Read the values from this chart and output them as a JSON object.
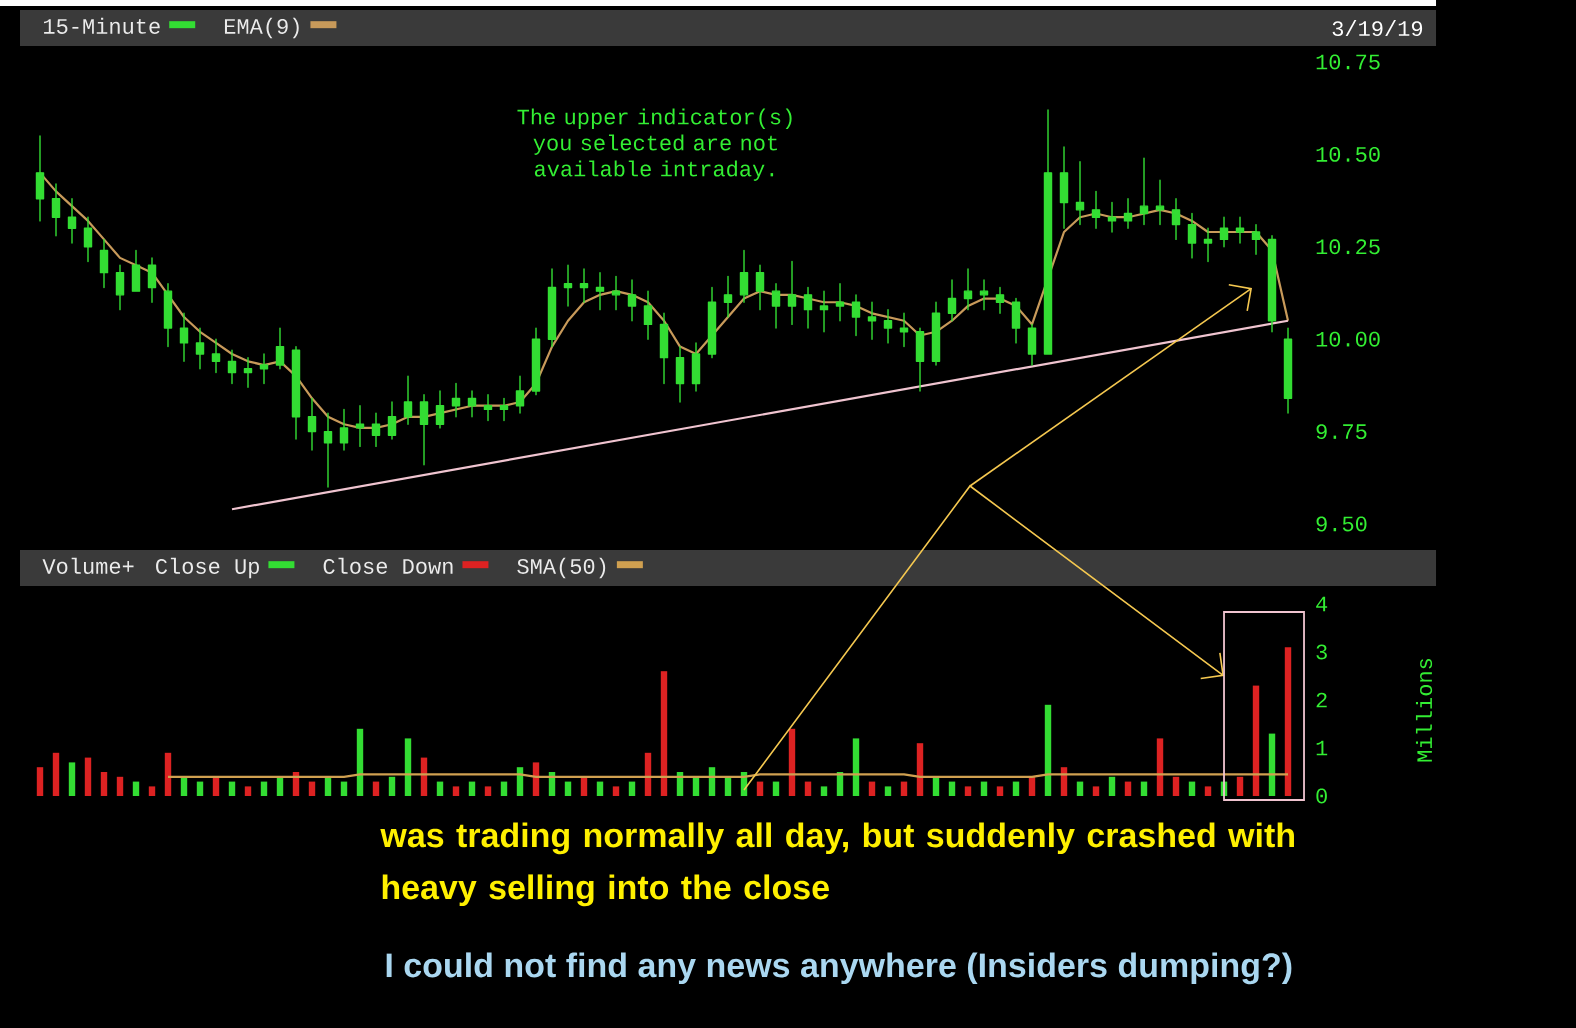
{
  "chart_data": [
    {
      "type": "candlestick",
      "categories": [
        null,
        null,
        null,
        null,
        null,
        null,
        null,
        null,
        null,
        null,
        null,
        null,
        null,
        null,
        null,
        null,
        null,
        null,
        null,
        null,
        null,
        null,
        null,
        null,
        null,
        null,
        null,
        null,
        null,
        null,
        null,
        null,
        null,
        null,
        null,
        null,
        null,
        null,
        null,
        null,
        null,
        null,
        null,
        null,
        null,
        null,
        null,
        null,
        null,
        null,
        null,
        null,
        null,
        null,
        null,
        null,
        null,
        null,
        null,
        null,
        null,
        null,
        null,
        null,
        null,
        null,
        null,
        null,
        null,
        null,
        null,
        null,
        null,
        null,
        null,
        null,
        null,
        null,
        null
      ],
      "series": [
        {
          "name": "15-Minute",
          "type": "candlestick",
          "color": "#33dd33",
          "ohlc": [
            [
              10.45,
              10.55,
              10.32,
              10.38
            ],
            [
              10.38,
              10.42,
              10.28,
              10.33
            ],
            [
              10.33,
              10.38,
              10.26,
              10.3
            ],
            [
              10.3,
              10.33,
              10.21,
              10.25
            ],
            [
              10.24,
              10.27,
              10.14,
              10.18
            ],
            [
              10.18,
              10.2,
              10.08,
              10.12
            ],
            [
              10.13,
              10.24,
              10.13,
              10.2
            ],
            [
              10.2,
              10.22,
              10.1,
              10.14
            ],
            [
              10.13,
              10.15,
              9.98,
              10.03
            ],
            [
              10.03,
              10.07,
              9.94,
              9.99
            ],
            [
              9.99,
              10.03,
              9.92,
              9.96
            ],
            [
              9.96,
              10.0,
              9.91,
              9.94
            ],
            [
              9.94,
              9.97,
              9.88,
              9.91
            ],
            [
              9.91,
              9.95,
              9.87,
              9.92
            ],
            [
              9.92,
              9.96,
              9.88,
              9.93
            ],
            [
              9.93,
              10.03,
              9.92,
              9.98
            ],
            [
              9.97,
              9.98,
              9.73,
              9.79
            ],
            [
              9.79,
              9.84,
              9.7,
              9.75
            ],
            [
              9.75,
              9.8,
              9.6,
              9.72
            ],
            [
              9.72,
              9.81,
              9.7,
              9.76
            ],
            [
              9.76,
              9.82,
              9.71,
              9.77
            ],
            [
              9.77,
              9.8,
              9.71,
              9.74
            ],
            [
              9.74,
              9.83,
              9.73,
              9.79
            ],
            [
              9.79,
              9.9,
              9.77,
              9.83
            ],
            [
              9.83,
              9.85,
              9.66,
              9.77
            ],
            [
              9.77,
              9.86,
              9.76,
              9.82
            ],
            [
              9.82,
              9.88,
              9.79,
              9.84
            ],
            [
              9.84,
              9.86,
              9.79,
              9.82
            ],
            [
              9.82,
              9.85,
              9.78,
              9.81
            ],
            [
              9.81,
              9.84,
              9.78,
              9.82
            ],
            [
              9.82,
              9.9,
              9.8,
              9.86
            ],
            [
              9.86,
              10.03,
              9.85,
              10.0
            ],
            [
              10.0,
              10.19,
              9.98,
              10.14
            ],
            [
              10.14,
              10.2,
              10.09,
              10.15
            ],
            [
              10.15,
              10.19,
              10.1,
              10.14
            ],
            [
              10.14,
              10.18,
              10.08,
              10.13
            ],
            [
              10.13,
              10.17,
              10.08,
              10.12
            ],
            [
              10.12,
              10.16,
              10.05,
              10.09
            ],
            [
              10.09,
              10.13,
              10.0,
              10.04
            ],
            [
              10.04,
              10.07,
              9.88,
              9.95
            ],
            [
              9.95,
              9.98,
              9.83,
              9.88
            ],
            [
              9.88,
              9.99,
              9.86,
              9.96
            ],
            [
              9.96,
              10.14,
              9.95,
              10.1
            ],
            [
              10.1,
              10.17,
              10.06,
              10.12
            ],
            [
              10.12,
              10.24,
              10.1,
              10.18
            ],
            [
              10.18,
              10.2,
              10.08,
              10.13
            ],
            [
              10.13,
              10.15,
              10.03,
              10.09
            ],
            [
              10.09,
              10.21,
              10.04,
              10.12
            ],
            [
              10.12,
              10.14,
              10.03,
              10.08
            ],
            [
              10.08,
              10.13,
              10.02,
              10.09
            ],
            [
              10.09,
              10.15,
              10.05,
              10.1
            ],
            [
              10.1,
              10.12,
              10.01,
              10.06
            ],
            [
              10.06,
              10.1,
              10.0,
              10.05
            ],
            [
              10.05,
              10.08,
              9.99,
              10.03
            ],
            [
              10.03,
              10.07,
              9.98,
              10.02
            ],
            [
              10.02,
              10.03,
              9.86,
              9.94
            ],
            [
              9.94,
              10.1,
              9.93,
              10.07
            ],
            [
              10.07,
              10.16,
              10.05,
              10.11
            ],
            [
              10.11,
              10.19,
              10.08,
              10.13
            ],
            [
              10.13,
              10.16,
              10.08,
              10.12
            ],
            [
              10.12,
              10.14,
              10.07,
              10.1
            ],
            [
              10.1,
              10.11,
              9.99,
              10.03
            ],
            [
              10.03,
              10.04,
              9.93,
              9.96
            ],
            [
              9.96,
              10.62,
              9.96,
              10.45
            ],
            [
              10.45,
              10.52,
              10.3,
              10.37
            ],
            [
              10.37,
              10.48,
              10.31,
              10.35
            ],
            [
              10.35,
              10.4,
              10.3,
              10.33
            ],
            [
              10.33,
              10.37,
              10.29,
              10.32
            ],
            [
              10.32,
              10.38,
              10.3,
              10.34
            ],
            [
              10.34,
              10.49,
              10.31,
              10.36
            ],
            [
              10.36,
              10.43,
              10.31,
              10.35
            ],
            [
              10.35,
              10.38,
              10.27,
              10.31
            ],
            [
              10.31,
              10.34,
              10.22,
              10.26
            ],
            [
              10.26,
              10.3,
              10.21,
              10.27
            ],
            [
              10.27,
              10.33,
              10.25,
              10.3
            ],
            [
              10.3,
              10.33,
              10.26,
              10.29
            ],
            [
              10.29,
              10.31,
              10.23,
              10.27
            ],
            [
              10.27,
              10.28,
              10.02,
              10.05
            ],
            [
              10.0,
              10.03,
              9.8,
              9.84
            ]
          ]
        },
        {
          "name": "EMA(9)",
          "type": "line",
          "color": "#c89a5a",
          "values": [
            10.45,
            10.4,
            10.36,
            10.32,
            10.27,
            10.22,
            10.2,
            10.18,
            10.12,
            10.06,
            10.02,
            9.99,
            9.96,
            9.94,
            9.93,
            9.94,
            9.9,
            9.84,
            9.79,
            9.77,
            9.76,
            9.76,
            9.77,
            9.79,
            9.79,
            9.8,
            9.81,
            9.82,
            9.82,
            9.82,
            9.83,
            9.88,
            9.98,
            10.05,
            10.1,
            10.12,
            10.13,
            10.12,
            10.1,
            10.05,
            9.98,
            9.96,
            10.01,
            10.06,
            10.11,
            10.13,
            10.12,
            10.12,
            10.11,
            10.1,
            10.1,
            10.09,
            10.07,
            10.06,
            10.05,
            10.01,
            10.02,
            10.05,
            10.09,
            10.11,
            10.11,
            10.09,
            10.04,
            null,
            10.29,
            10.33,
            10.34,
            10.33,
            10.33,
            10.34,
            10.35,
            10.34,
            10.32,
            10.29,
            10.29,
            10.29,
            10.29,
            10.24,
            10.05
          ]
        },
        {
          "type": "line",
          "color": "#f0c4d0",
          "values": [
            null,
            null,
            null,
            null,
            null,
            null,
            null,
            null,
            null,
            null,
            null,
            null,
            9.54,
            null,
            null,
            null,
            null,
            null,
            null,
            null,
            null,
            null,
            null,
            null,
            null,
            null,
            null,
            null,
            null,
            null,
            null,
            null,
            null,
            null,
            null,
            null,
            null,
            null,
            null,
            null,
            null,
            null,
            null,
            null,
            null,
            null,
            null,
            null,
            null,
            null,
            null,
            null,
            null,
            null,
            null,
            null,
            null,
            null,
            null,
            null,
            null,
            null,
            null,
            null,
            null,
            null,
            null,
            null,
            null,
            null,
            null,
            null,
            null,
            null,
            null,
            null,
            null,
            null,
            10.05
          ]
        }
      ],
      "ylim": [
        9.5,
        10.75
      ],
      "yticks": [
        {
          "value": 9.5,
          "label": "9.50"
        },
        9.75,
        {
          "value": 10,
          "label": "10.00"
        },
        10.25,
        {
          "value": 10.5,
          "label": "10.50"
        },
        10.75
      ],
      "tick_labels": "y",
      "legend": "top left",
      "annotations": [
        "3/19/19",
        "The upper indicator(s) you selected are not available intraday."
      ]
    },
    {
      "type": "bar",
      "title": "Volume+",
      "ylabel": "Millions",
      "stacked": true,
      "categories": [
        null,
        null,
        null,
        null,
        null,
        null,
        null,
        null,
        null,
        null,
        null,
        null,
        null,
        null,
        null,
        null,
        null,
        null,
        null,
        null,
        null,
        null,
        null,
        null,
        null,
        null,
        null,
        null,
        null,
        null,
        null,
        null,
        null,
        null,
        null,
        null,
        null,
        null,
        null,
        null,
        null,
        null,
        null,
        null,
        null,
        null,
        null,
        null,
        null,
        null,
        null,
        null,
        null,
        null,
        null,
        null,
        null,
        null,
        null,
        null,
        null,
        null,
        null,
        null,
        null,
        null,
        null,
        null,
        null,
        null,
        null,
        null,
        null,
        null,
        null,
        null,
        null,
        null,
        null
      ],
      "series": [
        {
          "name": "Close Up",
          "color": "#33dd33",
          "values": [
            null,
            null,
            0.7,
            null,
            null,
            null,
            0.3,
            null,
            null,
            0.4,
            0.3,
            null,
            0.3,
            null,
            0.3,
            0.4,
            null,
            null,
            0.4,
            0.3,
            1.4,
            null,
            0.4,
            1.2,
            null,
            0.3,
            null,
            0.3,
            null,
            0.3,
            0.6,
            null,
            0.5,
            0.3,
            null,
            0.3,
            null,
            0.3,
            null,
            null,
            0.5,
            0.4,
            0.6,
            0.4,
            0.5,
            null,
            0.3,
            null,
            null,
            0.2,
            0.5,
            1.2,
            null,
            0.2,
            null,
            null,
            0.4,
            0.3,
            null,
            0.3,
            null,
            0.3,
            null,
            1.9,
            null,
            0.3,
            null,
            0.4,
            null,
            0.3,
            null,
            null,
            0.3,
            null,
            0.3,
            null,
            null,
            1.3,
            null
          ]
        },
        {
          "name": "Close Down",
          "color": "#dd2222",
          "values": [
            0.6,
            0.9,
            null,
            0.8,
            0.5,
            0.4,
            null,
            0.2,
            0.9,
            null,
            null,
            0.4,
            null,
            0.2,
            null,
            null,
            0.5,
            0.3,
            null,
            null,
            null,
            0.3,
            null,
            null,
            0.8,
            null,
            0.2,
            null,
            0.2,
            null,
            null,
            0.7,
            null,
            null,
            0.4,
            null,
            0.2,
            null,
            0.9,
            2.6,
            null,
            null,
            null,
            null,
            null,
            0.3,
            null,
            1.4,
            0.3,
            null,
            null,
            null,
            0.3,
            null,
            0.3,
            1.1,
            null,
            null,
            0.2,
            null,
            0.2,
            null,
            0.4,
            null,
            0.6,
            null,
            0.2,
            null,
            0.3,
            null,
            1.2,
            0.4,
            null,
            0.2,
            null,
            0.4,
            2.3,
            null,
            3.1
          ]
        },
        {
          "name": "SMA(50)",
          "type": "line",
          "color": "#d0a050",
          "values": [
            null,
            null,
            null,
            null,
            null,
            null,
            null,
            null,
            0.4,
            0.4,
            0.4,
            0.4,
            0.4,
            0.4,
            0.4,
            0.4,
            0.4,
            0.4,
            0.4,
            0.4,
            0.45,
            0.45,
            0.45,
            0.45,
            0.45,
            0.45,
            0.45,
            0.45,
            0.45,
            0.45,
            0.45,
            0.4,
            0.4,
            0.4,
            0.4,
            0.4,
            0.4,
            0.4,
            0.4,
            0.4,
            0.4,
            0.4,
            0.4,
            0.4,
            0.4,
            0.45,
            0.45,
            0.45,
            0.45,
            0.45,
            0.45,
            0.45,
            0.45,
            0.45,
            0.45,
            0.4,
            0.4,
            0.4,
            0.4,
            0.4,
            0.4,
            0.4,
            0.4,
            0.45,
            0.45,
            0.45,
            0.45,
            0.45,
            0.45,
            0.45,
            0.45,
            0.45,
            0.45,
            0.45,
            0.45,
            0.45,
            0.45,
            0.45,
            0.45
          ]
        }
      ],
      "ylim": [
        0,
        4
      ],
      "yticks": [
        0,
        1,
        2,
        3,
        4
      ],
      "tick_labels": "y",
      "legend": "top left",
      "annotations": [
        "was trading normally all day, but suddenly crashed with heavy selling into the close",
        "I could not find any news anywhere  (Insiders dumping?)"
      ]
    }
  ]
}
